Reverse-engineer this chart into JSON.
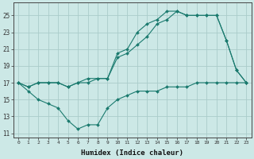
{
  "xlabel": "Humidex (Indice chaleur)",
  "ylabel": "",
  "background_color": "#cce8e6",
  "grid_color": "#aaccca",
  "line_color": "#1a7a6e",
  "x": [
    0,
    1,
    2,
    3,
    4,
    5,
    6,
    7,
    8,
    9,
    10,
    11,
    12,
    13,
    14,
    15,
    16,
    17,
    18,
    19,
    20,
    21,
    22,
    23
  ],
  "y_max": [
    17,
    16.5,
    17,
    17,
    17,
    16.5,
    17,
    17.5,
    17.5,
    17.5,
    20.5,
    21,
    23,
    24,
    24.5,
    25.5,
    25.5,
    25,
    25,
    25,
    25,
    22,
    18.5,
    17
  ],
  "y_mean": [
    17,
    16.5,
    17,
    17,
    17,
    16.5,
    17,
    17,
    17.5,
    17.5,
    20,
    20.5,
    21.5,
    22.5,
    24,
    24.5,
    25.5,
    25,
    25,
    25,
    25,
    22,
    18.5,
    17
  ],
  "y_min": [
    17,
    16,
    15,
    14.5,
    14,
    12.5,
    11.5,
    12,
    12,
    14,
    15,
    15.5,
    16,
    16,
    16,
    16.5,
    16.5,
    16.5,
    17,
    17,
    17,
    17,
    17,
    17
  ],
  "xlim": [
    -0.5,
    23.5
  ],
  "ylim": [
    10.5,
    26.5
  ],
  "yticks": [
    11,
    13,
    15,
    17,
    19,
    21,
    23,
    25
  ],
  "xticks": [
    0,
    1,
    2,
    3,
    4,
    5,
    6,
    7,
    8,
    9,
    10,
    11,
    12,
    13,
    14,
    15,
    16,
    17,
    18,
    19,
    20,
    21,
    22,
    23
  ]
}
